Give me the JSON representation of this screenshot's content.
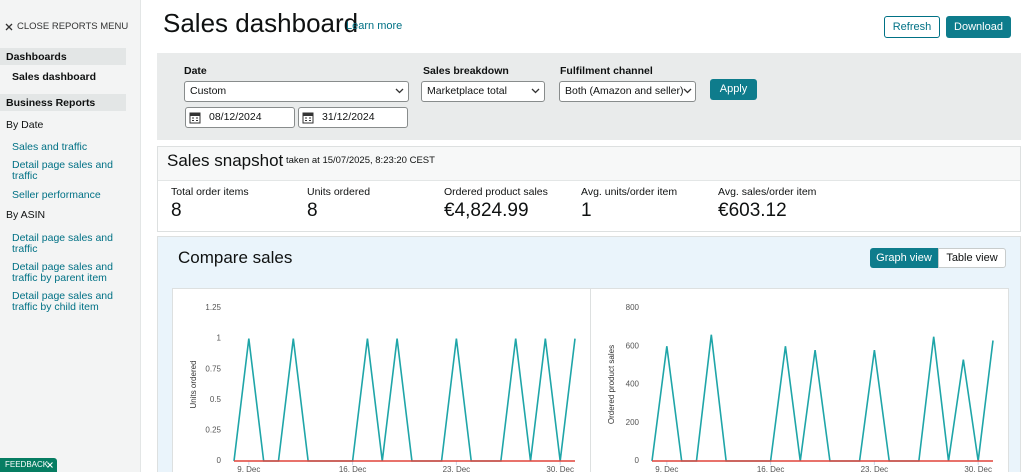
{
  "sidebar": {
    "close_menu": "CLOSE REPORTS MENU",
    "dashboards_heading": "Dashboards",
    "active_item": "Sales dashboard",
    "business_reports_heading": "Business Reports",
    "by_date_label": "By Date",
    "by_date_links": [
      "Sales and traffic",
      "Detail page sales and traffic",
      "Seller performance"
    ],
    "by_asin_label": "By ASIN",
    "by_asin_links": [
      "Detail page sales and traffic",
      "Detail page sales and traffic by parent item",
      "Detail page sales and traffic by child item"
    ],
    "feedback": "FEEDBACK"
  },
  "header": {
    "title": "Sales dashboard",
    "learn_more": "Learn more",
    "refresh": "Refresh",
    "download": "Download"
  },
  "filters": {
    "date_label": "Date",
    "date_value": "Custom",
    "start_date": "08/12/2024",
    "end_date": "31/12/2024",
    "breakdown_label": "Sales breakdown",
    "breakdown_value": "Marketplace total",
    "channel_label": "Fulfilment channel",
    "channel_value": "Both (Amazon and seller)",
    "apply": "Apply"
  },
  "snapshot": {
    "title": "Sales snapshot",
    "timestamp": "taken at 15/07/2025, 8:23:20 CEST",
    "metrics": [
      {
        "label": "Total order items",
        "value": "8"
      },
      {
        "label": "Units ordered",
        "value": "8"
      },
      {
        "label": "Ordered product sales",
        "value": "€4,824.99"
      },
      {
        "label": "Avg. units/order item",
        "value": "1"
      },
      {
        "label": "Avg. sales/order item",
        "value": "€603.12"
      }
    ]
  },
  "compare": {
    "title": "Compare sales",
    "graph_view": "Graph view",
    "table_view": "Table view"
  },
  "chart_data": [
    {
      "type": "line",
      "y_label": "Units ordered",
      "categories": [
        null,
        "9. Dec",
        null,
        null,
        null,
        null,
        null,
        null,
        "16. Dec",
        null,
        null,
        null,
        null,
        null,
        null,
        "23. Dec",
        null,
        null,
        null,
        null,
        null,
        null,
        "30. Dec",
        null
      ],
      "series": [
        {
          "color": "#1fa5a8",
          "values": [
            0,
            1,
            0,
            0,
            1,
            0,
            0,
            0,
            0,
            1,
            0,
            1,
            0,
            0,
            0,
            1,
            0,
            0,
            0,
            1,
            0,
            1,
            0,
            1
          ]
        },
        {
          "color": "#e0433a",
          "values": [
            0,
            0,
            0,
            0,
            0,
            0,
            0,
            0,
            0,
            0,
            0,
            0,
            0,
            0,
            0,
            0,
            0,
            0,
            0,
            0,
            0,
            0,
            0,
            0
          ]
        }
      ],
      "ylim": [
        0,
        1.25
      ],
      "yticks": [
        0,
        0.25,
        0.5,
        0.75,
        1,
        1.25
      ],
      "grid": false
    },
    {
      "type": "line",
      "y_label": "Ordered product sales",
      "categories": [
        null,
        "9. Dec",
        null,
        null,
        null,
        null,
        null,
        null,
        "16. Dec",
        null,
        null,
        null,
        null,
        null,
        null,
        "23. Dec",
        null,
        null,
        null,
        null,
        null,
        null,
        "30. Dec",
        null
      ],
      "series": [
        {
          "color": "#1fa5a8",
          "values": [
            0,
            600,
            0,
            0,
            660,
            0,
            0,
            0,
            0,
            600,
            0,
            580,
            0,
            0,
            0,
            580,
            0,
            0,
            0,
            650,
            0,
            530,
            0,
            630
          ]
        },
        {
          "color": "#e0433a",
          "values": [
            0,
            0,
            0,
            0,
            0,
            0,
            0,
            0,
            0,
            0,
            0,
            0,
            0,
            0,
            0,
            0,
            0,
            0,
            0,
            0,
            0,
            0,
            0,
            0
          ]
        }
      ],
      "ylim": [
        0,
        800
      ],
      "yticks": [
        0,
        200,
        400,
        600,
        800
      ],
      "grid": false
    }
  ]
}
